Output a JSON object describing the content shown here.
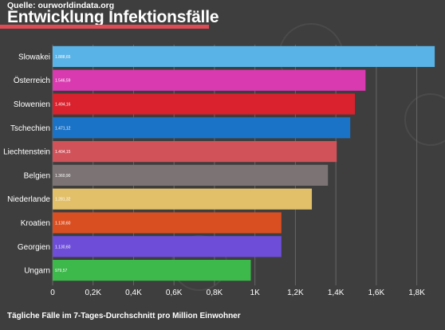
{
  "header": {
    "source": "Quelle: ourworldindata.org",
    "title": "Entwicklung Infektionsfälle"
  },
  "footer": {
    "note": "Tägliche Fälle im 7-Tages-Durchschnitt pro Million Einwohner"
  },
  "colors": {
    "background": "#3e3e3e",
    "accent": "#e04a54",
    "grid": "#666666",
    "text": "#ffffff"
  },
  "chart_data": {
    "type": "bar",
    "orientation": "horizontal",
    "xlim": [
      0,
      1900
    ],
    "grid": true,
    "x_ticks": [
      {
        "value": 0,
        "label": "0"
      },
      {
        "value": 200,
        "label": "0,2K"
      },
      {
        "value": 400,
        "label": "0,4K"
      },
      {
        "value": 600,
        "label": "0,6K"
      },
      {
        "value": 800,
        "label": "0,8K"
      },
      {
        "value": 1000,
        "label": "1K"
      },
      {
        "value": 1200,
        "label": "1,2K"
      },
      {
        "value": 1400,
        "label": "1,4K"
      },
      {
        "value": 1600,
        "label": "1,6K"
      },
      {
        "value": 1800,
        "label": "1,8K"
      }
    ],
    "bars": [
      {
        "category": "Slowakei",
        "value": 1888.65,
        "label": "1.888,65",
        "color": "#5ab3e6"
      },
      {
        "category": "Österreich",
        "value": 1546.59,
        "label": "1.546,59",
        "color": "#d93ab0"
      },
      {
        "category": "Slowenien",
        "value": 1494.16,
        "label": "1.494,16",
        "color": "#d9222e"
      },
      {
        "category": "Tschechien",
        "value": 1471.12,
        "label": "1.471,12",
        "color": "#1b73c8"
      },
      {
        "category": "Liechtenstein",
        "value": 1404.15,
        "label": "1.404,15",
        "color": "#d2525a"
      },
      {
        "category": "Belgien",
        "value": 1360.9,
        "label": "1.360,90",
        "color": "#7c7474"
      },
      {
        "category": "Niederlande",
        "value": 1281.32,
        "label": "1.281,32",
        "color": "#e2c06a"
      },
      {
        "category": "Kroatien",
        "value": 1130.6,
        "label": "1.130,60",
        "color": "#da4f22"
      },
      {
        "category": "Georgien",
        "value": 1130.6,
        "label": "1.130,60",
        "color": "#6e4ed8"
      },
      {
        "category": "Ungarn",
        "value": 979.57,
        "label": "979,57",
        "color": "#3db84b"
      }
    ]
  }
}
